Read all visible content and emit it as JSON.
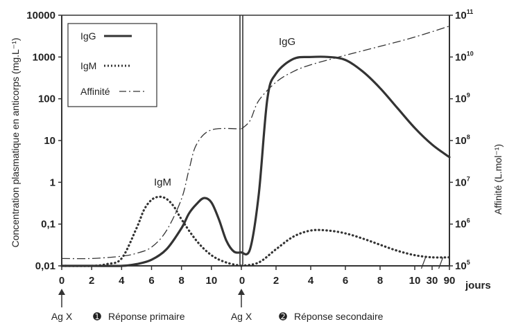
{
  "chart_data": {
    "type": "line",
    "title": "",
    "y_left": {
      "label": "Concentration plasmatique en anticorps (mg.L⁻¹)",
      "scale": "log",
      "range": [
        0.01,
        10000
      ],
      "ticks": [
        {
          "value": 0.01,
          "label": "0,01"
        },
        {
          "value": 0.1,
          "label": "0,1"
        },
        {
          "value": 1,
          "label": "1"
        },
        {
          "value": 10,
          "label": "10"
        },
        {
          "value": 100,
          "label": "100"
        },
        {
          "value": 1000,
          "label": "1000"
        },
        {
          "value": 10000,
          "label": "10000"
        }
      ]
    },
    "y_right": {
      "label": "Affinité (L.mol⁻¹)",
      "scale": "log",
      "range": [
        100000,
        100000000000
      ],
      "ticks": [
        {
          "value": 100000,
          "base": "10",
          "exp": "5"
        },
        {
          "value": 1000000,
          "base": "10",
          "exp": "6"
        },
        {
          "value": 10000000,
          "base": "10",
          "exp": "7"
        },
        {
          "value": 100000000,
          "base": "10",
          "exp": "8"
        },
        {
          "value": 1000000000,
          "base": "10",
          "exp": "9"
        },
        {
          "value": 10000000000,
          "base": "10",
          "exp": "10"
        },
        {
          "value": 100000000000,
          "base": "10",
          "exp": "11"
        }
      ]
    },
    "x": {
      "primary_ticks": [
        "0",
        "2",
        "4",
        "6",
        "8",
        "10"
      ],
      "secondary_ticks": [
        "0",
        "2",
        "4",
        "6",
        "8",
        "10",
        "30",
        "90"
      ],
      "unit_label": "jours"
    },
    "legend": {
      "placement": "top-left",
      "entries": [
        {
          "label": "IgG",
          "style": "solid"
        },
        {
          "label": "IgM",
          "style": "dotted"
        },
        {
          "label": "Affinité",
          "style": "dashdot"
        }
      ]
    },
    "annotations": {
      "igm_peak_label": "IgM",
      "igg_peak_label": "IgG",
      "antigen_1": "Ag X",
      "antigen_2": "Ag X",
      "phase_1_marker": "➊",
      "phase_1": "Réponse primaire",
      "phase_2_marker": "➋",
      "phase_2": "Réponse secondaire"
    },
    "series": {
      "igg_primary": [
        [
          0,
          0.01
        ],
        [
          2,
          0.01
        ],
        [
          4,
          0.01
        ],
        [
          5,
          0.011
        ],
        [
          6,
          0.014
        ],
        [
          7,
          0.025
        ],
        [
          8,
          0.08
        ],
        [
          8.5,
          0.18
        ],
        [
          9,
          0.3
        ],
        [
          9.5,
          0.42
        ],
        [
          10,
          0.33
        ],
        [
          10.5,
          0.13
        ],
        [
          11,
          0.04
        ],
        [
          11.5,
          0.022
        ],
        [
          12,
          0.021
        ]
      ],
      "igg_secondary": [
        [
          0,
          0.021
        ],
        [
          0.5,
          0.025
        ],
        [
          1,
          0.5
        ],
        [
          1.5,
          100
        ],
        [
          2,
          400
        ],
        [
          3,
          900
        ],
        [
          4,
          1000
        ],
        [
          5,
          1000
        ],
        [
          6,
          850
        ],
        [
          7,
          450
        ],
        [
          8,
          180
        ],
        [
          9,
          60
        ],
        [
          10,
          20
        ],
        [
          11,
          8
        ],
        [
          12,
          4
        ]
      ],
      "igm_primary": [
        [
          0,
          0.01
        ],
        [
          2,
          0.01
        ],
        [
          3,
          0.011
        ],
        [
          4,
          0.015
        ],
        [
          5,
          0.08
        ],
        [
          5.5,
          0.22
        ],
        [
          6,
          0.38
        ],
        [
          6.5,
          0.45
        ],
        [
          7,
          0.4
        ],
        [
          7.5,
          0.26
        ],
        [
          8,
          0.13
        ],
        [
          9,
          0.04
        ],
        [
          10,
          0.018
        ],
        [
          11,
          0.012
        ],
        [
          12,
          0.01
        ]
      ],
      "igm_secondary": [
        [
          0,
          0.01
        ],
        [
          1,
          0.012
        ],
        [
          2,
          0.025
        ],
        [
          3,
          0.05
        ],
        [
          4,
          0.07
        ],
        [
          5,
          0.07
        ],
        [
          6,
          0.06
        ],
        [
          7,
          0.045
        ],
        [
          8,
          0.032
        ],
        [
          9,
          0.023
        ],
        [
          10,
          0.018
        ],
        [
          11,
          0.016
        ],
        [
          12,
          0.016
        ]
      ],
      "affinity_primary": [
        [
          0,
          150000
        ],
        [
          2,
          150000
        ],
        [
          4,
          170000
        ],
        [
          5,
          200000
        ],
        [
          6,
          280000
        ],
        [
          7,
          700000
        ],
        [
          8,
          4000000
        ],
        [
          8.5,
          20000000
        ],
        [
          9,
          80000000
        ],
        [
          10,
          180000000
        ],
        [
          12,
          190000000
        ]
      ],
      "affinity_secondary": [
        [
          0,
          190000000
        ],
        [
          0.5,
          300000000
        ],
        [
          1,
          900000000
        ],
        [
          2,
          2500000000
        ],
        [
          3,
          4500000000
        ],
        [
          4,
          6500000000
        ],
        [
          6,
          11000000000
        ],
        [
          8,
          18000000000
        ],
        [
          10,
          30000000000
        ],
        [
          12,
          55000000000
        ]
      ]
    }
  }
}
